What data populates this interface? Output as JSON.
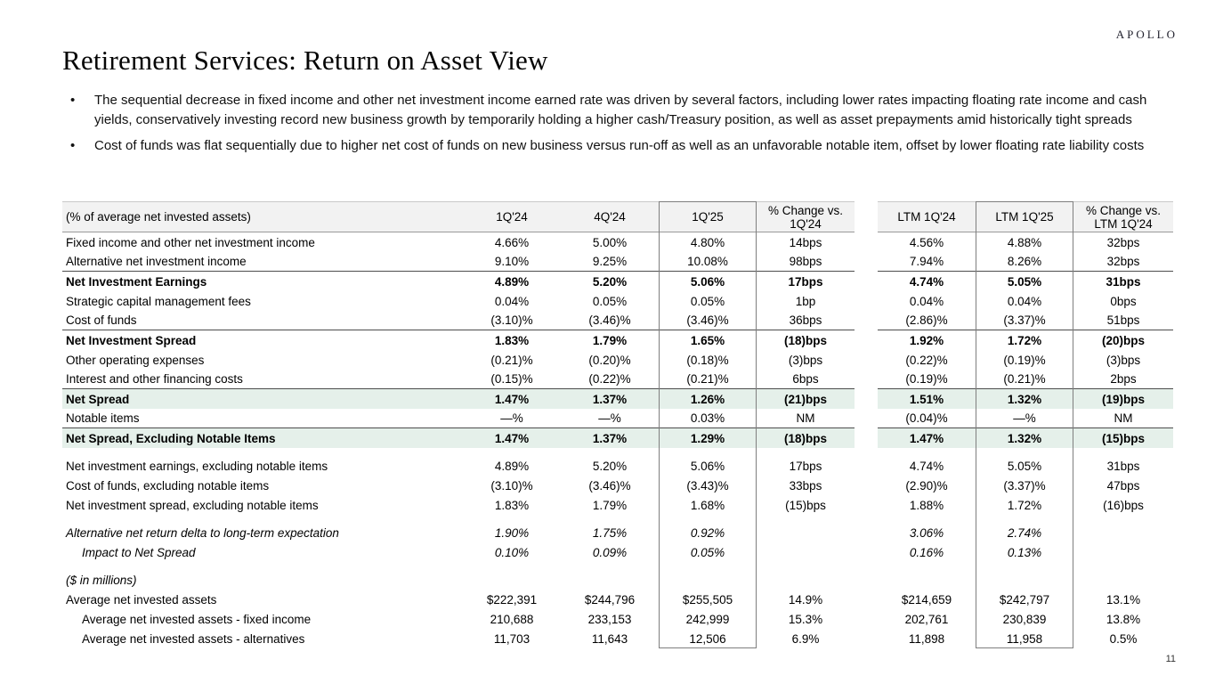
{
  "logo_text": "APOLLO",
  "page_number": "11",
  "title": "Retirement Services: Return on Asset View",
  "bullet_char": "•",
  "bullets": [
    "The sequential decrease in fixed income and other net investment income earned rate was driven by several factors, including lower rates impacting floating rate income and cash yields, conservatively investing record new business growth by temporarily holding a higher cash/Treasury position, as well as asset prepayments amid historically tight spreads",
    "Cost of funds was flat sequentially due to higher net cost of funds on new business versus run-off as well as an unfavorable notable item, offset by lower floating rate liability costs"
  ],
  "colors": {
    "header_bg": "#f2f2f2",
    "highlight_green": "#e5f0ea"
  },
  "table": {
    "label_header": "(% of average net invested assets)",
    "columns": [
      "1Q'24",
      "4Q'24",
      "1Q'25",
      "% Change vs. 1Q'24",
      "LTM 1Q'24",
      "LTM 1Q'25",
      "% Change vs. LTM 1Q'24"
    ],
    "rows": [
      {
        "label": "Fixed income and other net investment income",
        "values": [
          "4.66%",
          "5.00%",
          "4.80%",
          "14bps",
          "4.56%",
          "4.88%",
          "32bps"
        ]
      },
      {
        "label": "Alternative net investment income",
        "values": [
          "9.10%",
          "9.25%",
          "10.08%",
          "98bps",
          "7.94%",
          "8.26%",
          "32bps"
        ],
        "rule_below": true
      },
      {
        "label": "Net Investment Earnings",
        "values": [
          "4.89%",
          "5.20%",
          "5.06%",
          "17bps",
          "4.74%",
          "5.05%",
          "31bps"
        ],
        "bold": true
      },
      {
        "label": "Strategic capital management fees",
        "values": [
          "0.04%",
          "0.05%",
          "0.05%",
          "1bp",
          "0.04%",
          "0.04%",
          "0bps"
        ]
      },
      {
        "label": "Cost of funds",
        "values": [
          "(3.10)%",
          "(3.46)%",
          "(3.46)%",
          "36bps",
          "(2.86)%",
          "(3.37)%",
          "51bps"
        ],
        "rule_below": true
      },
      {
        "label": "Net Investment Spread",
        "values": [
          "1.83%",
          "1.79%",
          "1.65%",
          "(18)bps",
          "1.92%",
          "1.72%",
          "(20)bps"
        ],
        "bold": true
      },
      {
        "label": "Other operating expenses",
        "values": [
          "(0.21)%",
          "(0.20)%",
          "(0.18)%",
          "(3)bps",
          "(0.22)%",
          "(0.19)%",
          "(3)bps"
        ]
      },
      {
        "label": "Interest and other financing costs",
        "values": [
          "(0.15)%",
          "(0.22)%",
          "(0.21)%",
          "6bps",
          "(0.19)%",
          "(0.21)%",
          "2bps"
        ],
        "rule_below": true
      },
      {
        "label": "Net Spread",
        "values": [
          "1.47%",
          "1.37%",
          "1.26%",
          "(21)bps",
          "1.51%",
          "1.32%",
          "(19)bps"
        ],
        "bold": true,
        "green": true
      },
      {
        "label": "Notable items",
        "values": [
          "—%",
          "—%",
          "0.03%",
          "NM",
          "(0.04)%",
          "—%",
          "NM"
        ],
        "rule_below": true
      },
      {
        "label": "Net Spread, Excluding Notable Items",
        "values": [
          "1.47%",
          "1.37%",
          "1.29%",
          "(18)bps",
          "1.47%",
          "1.32%",
          "(15)bps"
        ],
        "bold": true,
        "green": true
      },
      {
        "label": "Net investment earnings, excluding notable items",
        "values": [
          "4.89%",
          "5.20%",
          "5.06%",
          "17bps",
          "4.74%",
          "5.05%",
          "31bps"
        ],
        "gap_before": true
      },
      {
        "label": "Cost of funds, excluding notable items",
        "values": [
          "(3.10)%",
          "(3.46)%",
          "(3.43)%",
          "33bps",
          "(2.90)%",
          "(3.37)%",
          "47bps"
        ]
      },
      {
        "label": "Net investment spread, excluding notable items",
        "values": [
          "1.83%",
          "1.79%",
          "1.68%",
          "(15)bps",
          "1.88%",
          "1.72%",
          "(16)bps"
        ]
      },
      {
        "label": "Alternative net return delta to long-term expectation",
        "values": [
          "1.90%",
          "1.75%",
          "0.92%",
          "",
          "3.06%",
          "2.74%",
          ""
        ],
        "italic": true,
        "gap_before": true
      },
      {
        "label": "Impact to Net Spread",
        "values": [
          "0.10%",
          "0.09%",
          "0.05%",
          "",
          "0.16%",
          "0.13%",
          ""
        ],
        "italic": true,
        "indent": 1
      },
      {
        "label": "($ in millions)",
        "values": [
          "",
          "",
          "",
          "",
          "",
          "",
          ""
        ],
        "italic": true,
        "gap_before": true
      },
      {
        "label": "Average net invested assets",
        "values": [
          "$222,391",
          "$244,796",
          "$255,505",
          "14.9%",
          "$214,659",
          "$242,797",
          "13.1%"
        ]
      },
      {
        "label": "Average net invested assets - fixed income",
        "values": [
          "210,688",
          "233,153",
          "242,999",
          "15.3%",
          "202,761",
          "230,839",
          "13.8%"
        ],
        "indent": 1
      },
      {
        "label": "Average net invested assets - alternatives",
        "values": [
          "11,703",
          "11,643",
          "12,506",
          "6.9%",
          "11,898",
          "11,958",
          "0.5%"
        ],
        "indent": 1
      }
    ]
  }
}
